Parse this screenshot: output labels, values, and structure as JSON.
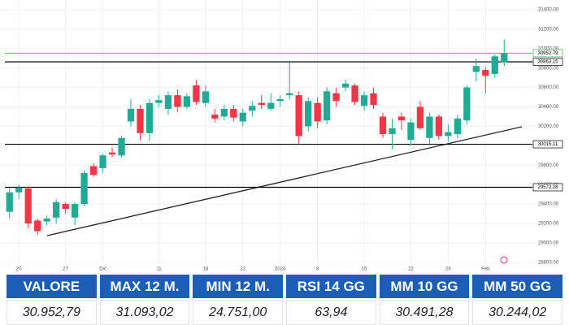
{
  "chart_data": {
    "type": "candlestick",
    "categories": [
      null,
      "20",
      null,
      null,
      null,
      null,
      "27",
      null,
      null,
      null,
      "Dic",
      null,
      null,
      null,
      null,
      null,
      "11",
      null,
      null,
      null,
      null,
      "18",
      null,
      null,
      null,
      "22",
      null,
      null,
      null,
      "2024",
      null,
      null,
      null,
      "8",
      null,
      null,
      null,
      null,
      "15",
      null,
      null,
      null,
      null,
      "22",
      null,
      null,
      null,
      "26",
      null,
      null,
      null,
      "Feb",
      null,
      null
    ],
    "open": [
      29320,
      29520,
      29560,
      29230,
      29220,
      29260,
      29400,
      29260,
      29400,
      29790,
      29770,
      29930,
      29900,
      30250,
      30380,
      30130,
      30440,
      30380,
      30520,
      30400,
      30620,
      30440,
      30320,
      30300,
      30380,
      30250,
      30360,
      30440,
      30380,
      30460,
      30520,
      30520,
      30200,
      30440,
      30260,
      30540,
      30600,
      30620,
      30410,
      30540,
      30300,
      30120,
      30300,
      30060,
      30400,
      30080,
      30300,
      30100,
      30120,
      30260,
      30760,
      30780,
      30740,
      30860
    ],
    "high": [
      29560,
      29600,
      29580,
      29250,
      29280,
      29450,
      29420,
      29420,
      29750,
      29820,
      29920,
      29980,
      30100,
      30480,
      30420,
      30480,
      30520,
      30560,
      30580,
      30540,
      30680,
      30620,
      30380,
      30420,
      30420,
      30380,
      30460,
      30520,
      30540,
      30520,
      30860,
      30560,
      30500,
      30500,
      30600,
      30600,
      30680,
      30640,
      30560,
      30600,
      30340,
      30280,
      30340,
      30280,
      30460,
      30340,
      30320,
      30220,
      30320,
      30620,
      30900,
      30810,
      30940,
      31093.02
    ],
    "low": [
      29250,
      29450,
      29150,
      29080,
      29180,
      29200,
      29300,
      29180,
      29380,
      29680,
      29720,
      29880,
      29880,
      30200,
      30050,
      30050,
      30400,
      30320,
      30350,
      30380,
      30420,
      30400,
      30240,
      30260,
      30250,
      30200,
      30300,
      30380,
      30360,
      30400,
      30480,
      30020,
      30150,
      30180,
      30220,
      30400,
      30560,
      30420,
      30360,
      30380,
      30080,
      29960,
      30160,
      30000,
      30160,
      30000,
      30060,
      30040,
      30080,
      30220,
      30660,
      30540,
      30700,
      30820
    ],
    "close": [
      29520,
      29570,
      29200,
      29120,
      29250,
      29420,
      29350,
      29400,
      29720,
      29700,
      29900,
      29910,
      30080,
      30380,
      30130,
      30440,
      30470,
      30520,
      30400,
      30510,
      30450,
      30560,
      30280,
      30380,
      30290,
      30340,
      30410,
      30420,
      30440,
      30480,
      30540,
      30100,
      30460,
      30250,
      30560,
      30460,
      30640,
      30450,
      30520,
      30420,
      30120,
      30180,
      30260,
      30240,
      30180,
      30300,
      30100,
      30140,
      30280,
      30600,
      30820,
      30720,
      30920,
      30952.79
    ],
    "up_color": "#22ab94",
    "down_color": "#f23645",
    "ylim": [
      28740,
      31500
    ],
    "yticks": [
      {
        "value": 28800,
        "label": "28800.00"
      },
      {
        "value": 29000,
        "label": "29000.00"
      },
      {
        "value": 29200,
        "label": "29200.00"
      },
      {
        "value": 29400,
        "label": "29400.00"
      },
      {
        "value": 29600,
        "label": "29600.00"
      },
      {
        "value": 29800,
        "label": "29800.00"
      },
      {
        "value": 30200,
        "label": "30200.00"
      },
      {
        "value": 30400,
        "label": "30400.00"
      },
      {
        "value": 30600,
        "label": "30600.00"
      },
      {
        "value": 30800,
        "label": "30800.00"
      },
      {
        "value": 31000,
        "label": "31000.00"
      },
      {
        "value": 31200,
        "label": "31200.00"
      },
      {
        "value": 31400,
        "label": "31400.00"
      }
    ],
    "levels": [
      30952.79,
      30863.15,
      30015.11,
      29572.28
    ],
    "level_colors": [
      "#4caf50",
      "#000000",
      "#000000",
      "#000000"
    ],
    "grid": true
  },
  "table": {
    "headers": [
      "VALORE",
      "MAX 12 M.",
      "MIN 12 M.",
      "RSI 14 GG",
      "MM 10 GG",
      "MM 50 GG"
    ],
    "values": [
      "30.952,79",
      "31.093,02",
      "24.751,00",
      "63,94",
      "30.491,28",
      "30.244,02"
    ]
  }
}
